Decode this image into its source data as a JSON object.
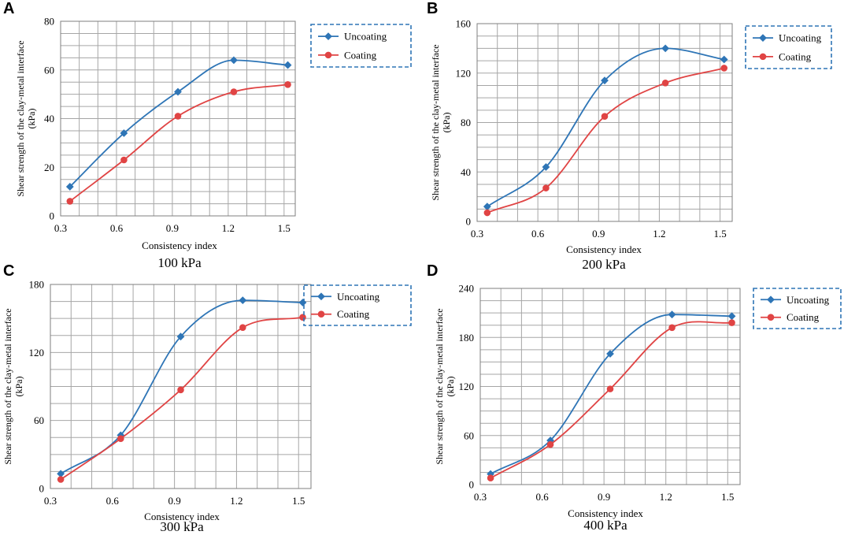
{
  "colors": {
    "uncoating": "#2e75b6",
    "coating": "#e04444",
    "legend_border": "#2e75b6"
  },
  "chart_data": [
    {
      "panel": "A",
      "type": "line",
      "subtitle": "100 kPa",
      "xlabel": "Consistency index",
      "ylabel": [
        "Shear strength of the clay-metal interface",
        "(kPa)"
      ],
      "xlim": [
        0.3,
        1.56
      ],
      "ylim": [
        0,
        80
      ],
      "xticks": [
        0.3,
        0.6,
        0.9,
        1.2,
        1.5
      ],
      "xtick_labels": [
        "0.3",
        "0.6",
        "0.9",
        "1.2",
        "1.5"
      ],
      "yticks": [
        0,
        20,
        40,
        60,
        80
      ],
      "ytick_labels": [
        "0",
        "20",
        "40",
        "60",
        "80"
      ],
      "legend_position": "top-right",
      "series": [
        {
          "name": "Uncoating",
          "marker": "diamond",
          "x": [
            0.35,
            0.64,
            0.93,
            1.23,
            1.52
          ],
          "y": [
            12,
            34,
            51,
            64,
            62
          ]
        },
        {
          "name": "Coating",
          "marker": "circle",
          "x": [
            0.35,
            0.64,
            0.93,
            1.23,
            1.52
          ],
          "y": [
            6,
            23,
            41,
            51,
            54
          ]
        }
      ]
    },
    {
      "panel": "B",
      "type": "line",
      "subtitle": "200 kPa",
      "xlabel": "Consistency index",
      "ylabel": [
        "Shear strength of the clay-metal interface",
        "(kPa)"
      ],
      "xlim": [
        0.3,
        1.56
      ],
      "ylim": [
        0,
        160
      ],
      "xticks": [
        0.3,
        0.6,
        0.9,
        1.2,
        1.5
      ],
      "xtick_labels": [
        "0.3",
        "0.6",
        "0.9",
        "1.2",
        "1.5"
      ],
      "yticks": [
        0,
        40,
        80,
        120,
        160
      ],
      "ytick_labels": [
        "0",
        "40",
        "80",
        "120",
        "160"
      ],
      "legend_position": "top-right",
      "series": [
        {
          "name": "Uncoating",
          "marker": "diamond",
          "x": [
            0.35,
            0.64,
            0.93,
            1.23,
            1.52
          ],
          "y": [
            12,
            44,
            114,
            140,
            131
          ]
        },
        {
          "name": "Coating",
          "marker": "circle",
          "x": [
            0.35,
            0.64,
            0.93,
            1.23,
            1.52
          ],
          "y": [
            7,
            27,
            85,
            112,
            124
          ]
        }
      ]
    },
    {
      "panel": "C",
      "type": "line",
      "subtitle": "300 kPa",
      "xlabel": "Consistency index",
      "ylabel": [
        "Shear strength of the clay-metal interface",
        "(kPa)"
      ],
      "xlim": [
        0.3,
        1.56
      ],
      "ylim": [
        0,
        180
      ],
      "xticks": [
        0.3,
        0.6,
        0.9,
        1.2,
        1.5
      ],
      "xtick_labels": [
        "0.3",
        "0.6",
        "0.9",
        "1.2",
        "1.5"
      ],
      "yticks": [
        0,
        60,
        120,
        180
      ],
      "ytick_labels": [
        "0",
        "60",
        "120",
        "180"
      ],
      "legend_position": "top-right",
      "series": [
        {
          "name": "Uncoating",
          "marker": "diamond",
          "x": [
            0.35,
            0.64,
            0.93,
            1.23,
            1.52
          ],
          "y": [
            13,
            47,
            134,
            166,
            164
          ]
        },
        {
          "name": "Coating",
          "marker": "circle",
          "x": [
            0.35,
            0.64,
            0.93,
            1.23,
            1.52
          ],
          "y": [
            8,
            44,
            87,
            142,
            151
          ]
        }
      ]
    },
    {
      "panel": "D",
      "type": "line",
      "subtitle": "400 kPa",
      "xlabel": "Consistency index",
      "ylabel": [
        "Shear strength of the clay-metal interface",
        "(kPa)"
      ],
      "xlim": [
        0.3,
        1.56
      ],
      "ylim": [
        0,
        240
      ],
      "xticks": [
        0.3,
        0.6,
        0.9,
        1.2,
        1.5
      ],
      "xtick_labels": [
        "0.3",
        "0.6",
        "0.9",
        "1.2",
        "1.5"
      ],
      "yticks": [
        0,
        60,
        120,
        180,
        240
      ],
      "ytick_labels": [
        "0",
        "60",
        "120",
        "180",
        "240"
      ],
      "legend_position": "top-right",
      "series": [
        {
          "name": "Uncoating",
          "marker": "diamond",
          "x": [
            0.35,
            0.64,
            0.93,
            1.23,
            1.52
          ],
          "y": [
            13,
            54,
            160,
            208,
            206
          ]
        },
        {
          "name": "Coating",
          "marker": "circle",
          "x": [
            0.35,
            0.64,
            0.93,
            1.23,
            1.52
          ],
          "y": [
            8,
            49,
            117,
            192,
            198
          ]
        }
      ]
    }
  ]
}
